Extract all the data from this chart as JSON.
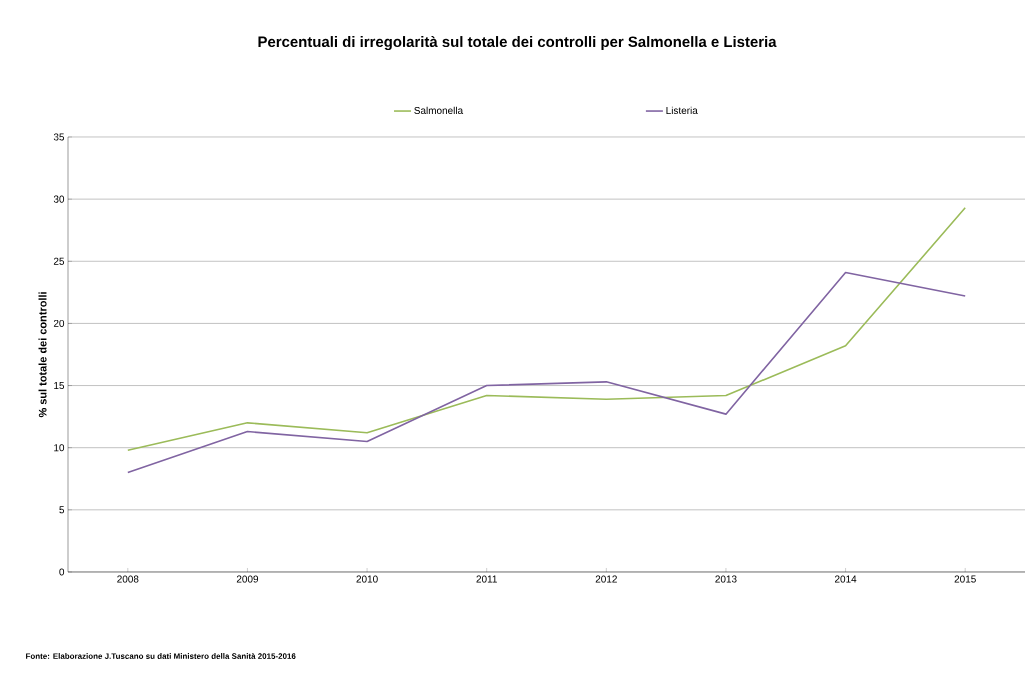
{
  "chart_data": {
    "type": "line",
    "title": "Percentuali di irregolarità sul totale dei controlli per Salmonella e Listeria",
    "ylabel": "% sul totale dei controlli",
    "categories": [
      "2008",
      "2009",
      "2010",
      "2011",
      "2012",
      "2013",
      "2014",
      "2015"
    ],
    "series": [
      {
        "name": "Salmonella",
        "color": "#9bbb59",
        "values": [
          9.8,
          12.0,
          11.2,
          14.2,
          13.9,
          14.2,
          18.2,
          29.3
        ]
      },
      {
        "name": "Listeria",
        "color": "#8064a2",
        "values": [
          8.0,
          11.3,
          10.5,
          15.0,
          15.3,
          12.7,
          24.1,
          22.2
        ]
      }
    ],
    "ylim": [
      0,
      35
    ],
    "yticks": [
      0,
      5,
      10,
      15,
      20,
      25,
      30,
      35
    ],
    "grid": "y",
    "legend": "top",
    "marker": "none",
    "line_style": "solid",
    "annotations": [
      "Fonte: Elaborazione J.Tuscano su dati Ministero della Sanità 2015-2016"
    ]
  }
}
